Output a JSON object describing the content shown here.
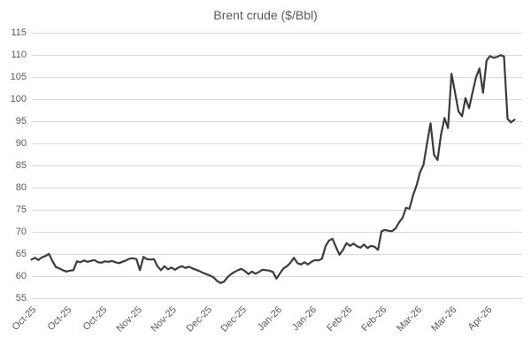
{
  "title": "Brent crude ($/Bbl)",
  "colors": {
    "line": "#3b3b3b",
    "grid": "#d9d9d9",
    "text": "#595959",
    "background": "#ffffff"
  },
  "chart_data": {
    "type": "line",
    "title": "Brent crude ($/Bbl)",
    "xlabel": "",
    "ylabel": "",
    "ylim": [
      55,
      115
    ],
    "y_ticks": [
      55,
      60,
      65,
      70,
      75,
      80,
      85,
      90,
      95,
      100,
      105,
      110,
      115
    ],
    "x_tick_labels": [
      "Oct-25",
      "Oct-25",
      "Oct-25",
      "Nov-25",
      "Nov-25",
      "Dec-25",
      "Dec-25",
      "Jan-26",
      "Jan-26",
      "Feb-26",
      "Feb-26",
      "Mar-26",
      "Mar-26",
      "Apr-26"
    ],
    "x_label_point_interval": 10,
    "grid": "horizontal",
    "legend_position": "none",
    "series": [
      {
        "name": "Brent crude",
        "values": [
          63.8,
          64.2,
          63.7,
          64.3,
          64.6,
          65.1,
          63.5,
          62.1,
          61.8,
          61.4,
          61.1,
          61.3,
          61.4,
          63.4,
          63.2,
          63.6,
          63.3,
          63.5,
          63.7,
          63.2,
          63.1,
          63.4,
          63.3,
          63.5,
          63.2,
          63.0,
          63.3,
          63.6,
          64.0,
          64.1,
          63.9,
          61.4,
          64.4,
          63.9,
          63.8,
          63.9,
          62.3,
          61.4,
          62.3,
          61.6,
          62.0,
          61.5,
          62.0,
          62.3,
          61.9,
          62.2,
          61.8,
          61.5,
          61.2,
          60.8,
          60.5,
          60.2,
          59.8,
          59.0,
          58.5,
          58.8,
          59.8,
          60.5,
          61.0,
          61.4,
          61.7,
          61.2,
          60.5,
          61.1,
          60.6,
          61.0,
          61.5,
          61.4,
          61.3,
          61.0,
          59.5,
          60.7,
          61.8,
          62.3,
          63.1,
          64.2,
          63.0,
          62.7,
          63.2,
          62.7,
          63.3,
          63.7,
          63.6,
          64.0,
          66.8,
          68.1,
          68.5,
          66.6,
          64.9,
          66.0,
          67.5,
          66.9,
          67.4,
          66.8,
          66.5,
          67.2,
          66.4,
          66.9,
          66.7,
          66.0,
          70.2,
          70.5,
          70.3,
          70.2,
          70.8,
          72.2,
          73.2,
          75.5,
          75.3,
          78.3,
          80.5,
          83.5,
          85.2,
          90.0,
          94.6,
          87.5,
          86.3,
          92.0,
          95.8,
          93.5,
          105.8,
          101.5,
          97.3,
          96.2,
          100.3,
          98.0,
          101.5,
          105.0,
          107.0,
          101.5,
          108.8,
          109.8,
          109.4,
          109.6,
          110.0,
          109.7,
          95.6,
          94.8,
          95.4
        ]
      }
    ]
  }
}
